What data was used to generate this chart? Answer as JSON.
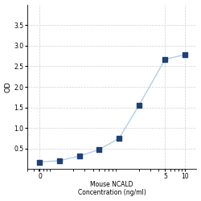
{
  "x_plot": [
    0.0625,
    0.125,
    0.25,
    0.5,
    1,
    2,
    5,
    10
  ],
  "y_plot": [
    0.175,
    0.21,
    0.32,
    0.48,
    0.75,
    1.55,
    2.67,
    2.78
  ],
  "xlabel_line1": "Mouse NCALD",
  "xlabel_line2": "Concentration (ng/ml)",
  "ylabel": "OD",
  "ylim": [
    0,
    4.0
  ],
  "yticks": [
    0.5,
    1.0,
    1.5,
    2.0,
    2.5,
    3.0,
    3.5
  ],
  "xtick_positions": [
    0.0625,
    5,
    10
  ],
  "xtick_labels": [
    "0",
    "5",
    "10"
  ],
  "line_color": "#b0cfe8",
  "marker_color": "#1f3f7a",
  "marker_size": 4,
  "line_width": 1.0,
  "grid_color": "#d0d0d0",
  "background_color": "#ffffff",
  "xlabel_fontsize": 5.5,
  "ylabel_fontsize": 6.5,
  "tick_fontsize": 5.5
}
